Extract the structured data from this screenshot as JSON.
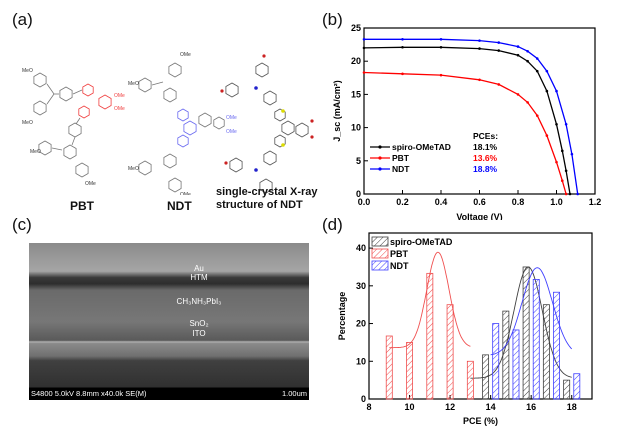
{
  "panels": {
    "a": "(a)",
    "b": "(b)",
    "c": "(c)",
    "d": "(d)"
  },
  "molecules": {
    "pbt": "PBT",
    "ndt": "NDT",
    "crystal_line1": "single-crystal X-ray",
    "crystal_line2": "structure of NDT",
    "substituent": "OMe",
    "substituent_alt": "MeO",
    "pbt_core_color": "#f04040",
    "ndt_core_color": "#6a6af0"
  },
  "sem": {
    "layers": [
      "Au",
      "HTM",
      "CH₃NH₃PbI₃",
      "SnO₂",
      "ITO"
    ],
    "info": "S4800 5.0kV 8.8mm x40.0k SE(M)",
    "scale": "1.00um"
  },
  "chart_data": [
    {
      "type": "line",
      "xlabel": "Voltage (V)",
      "ylabel": "J_sc (mA/cm²)",
      "xlim": [
        0,
        1.2
      ],
      "ylim": [
        0,
        25
      ],
      "xticks": [
        "0.0",
        "0.2",
        "0.4",
        "0.6",
        "0.8",
        "1.0",
        "1.2"
      ],
      "yticks": [
        "0",
        "5",
        "10",
        "15",
        "20",
        "25"
      ],
      "legend_title": "PCEs:",
      "legend_placement": "bottom-left",
      "series": [
        {
          "name": "spiro-OMeTAD",
          "pce": "18.1%",
          "color": "#000000",
          "x": [
            0,
            0.2,
            0.4,
            0.6,
            0.7,
            0.8,
            0.85,
            0.9,
            0.95,
            1.0,
            1.03,
            1.05,
            1.07
          ],
          "y": [
            22.0,
            22.1,
            22.1,
            21.9,
            21.6,
            20.9,
            20.0,
            18.5,
            15.5,
            10.5,
            6.5,
            3.5,
            0
          ]
        },
        {
          "name": "PBT",
          "pce": "13.6%",
          "color": "#ff0000",
          "x": [
            0,
            0.2,
            0.4,
            0.6,
            0.7,
            0.8,
            0.85,
            0.9,
            0.95,
            1.0,
            1.03,
            1.05
          ],
          "y": [
            18.3,
            18.1,
            17.9,
            17.2,
            16.5,
            15.0,
            13.8,
            11.8,
            8.8,
            4.8,
            2.0,
            0
          ]
        },
        {
          "name": "NDT",
          "pce": "18.8%",
          "color": "#0000ff",
          "x": [
            0,
            0.2,
            0.4,
            0.6,
            0.7,
            0.8,
            0.85,
            0.9,
            0.95,
            1.0,
            1.05,
            1.08,
            1.11
          ],
          "y": [
            23.3,
            23.3,
            23.3,
            23.1,
            22.8,
            22.2,
            21.5,
            20.4,
            18.5,
            15.5,
            10.5,
            6.0,
            0
          ]
        }
      ]
    },
    {
      "type": "bar",
      "xlabel": "PCE (%)",
      "ylabel": "Percentage",
      "xlim": [
        8,
        19
      ],
      "ylim": [
        0,
        44
      ],
      "xticks": [
        "8",
        "10",
        "12",
        "14",
        "16",
        "18"
      ],
      "yticks": [
        "0",
        "10",
        "20",
        "30",
        "40"
      ],
      "legend_placement": "top-left",
      "series": [
        {
          "name": "spiro-OMeTAD",
          "color": "#404040",
          "x": [
            13.75,
            14.75,
            15.75,
            16.75,
            17.75
          ],
          "y": [
            11.7,
            23.3,
            35,
            25,
            5
          ],
          "fit": {
            "center": 15.85,
            "peak": 35,
            "sigma": 0.7,
            "base": 5.5,
            "range": [
              13,
              18
            ]
          }
        },
        {
          "name": "PBT",
          "color": "#f05050",
          "x": [
            9,
            10,
            11,
            12,
            13
          ],
          "y": [
            16.7,
            15,
            33.3,
            25,
            10
          ],
          "fit": {
            "center": 11.4,
            "peak": 38.9,
            "sigma": 0.55,
            "base": 13.6,
            "range": [
              9,
              13
            ]
          }
        },
        {
          "name": "NDT",
          "color": "#4040ff",
          "x": [
            14.25,
            15.25,
            16.25,
            17.25,
            18.25
          ],
          "y": [
            20,
            18.3,
            31.7,
            28.3,
            6.7
          ],
          "fit": {
            "center": 16.3,
            "peak": 34.8,
            "sigma": 0.75,
            "base": 11.5,
            "range": [
              14,
              18
            ]
          }
        }
      ]
    }
  ]
}
